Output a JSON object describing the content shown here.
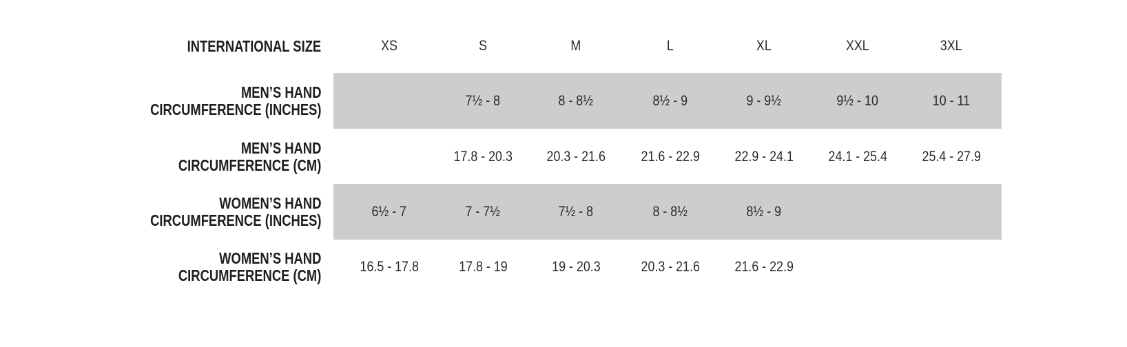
{
  "header": {
    "label": "INTERNATIONAL SIZE",
    "sizes": [
      "XS",
      "S",
      "M",
      "L",
      "XL",
      "XXL",
      "3XL"
    ]
  },
  "rows": [
    {
      "label_line1": "MEN’S HAND",
      "label_line2": "CIRCUMFERENCE (INCHES)",
      "shaded": true,
      "values": [
        "",
        "7½ - 8",
        "8 - 8½",
        "8½ - 9",
        "9 - 9½",
        "9½ - 10",
        "10 - 11"
      ]
    },
    {
      "label_line1": "MEN’S HAND",
      "label_line2": "CIRCUMFERENCE (CM)",
      "shaded": false,
      "values": [
        "",
        "17.8 - 20.3",
        "20.3 - 21.6",
        "21.6 - 22.9",
        "22.9 - 24.1",
        "24.1 - 25.4",
        "25.4 - 27.9"
      ]
    },
    {
      "label_line1": "WOMEN’S HAND",
      "label_line2": "CIRCUMFERENCE (INCHES)",
      "shaded": true,
      "values": [
        "6½ - 7",
        "7 - 7½",
        "7½ - 8",
        "8 - 8½",
        "8½ - 9",
        "",
        ""
      ]
    },
    {
      "label_line1": "WOMEN’S HAND",
      "label_line2": "CIRCUMFERENCE (CM)",
      "shaded": false,
      "values": [
        "16.5 - 17.8",
        "17.8 - 19",
        "19 - 20.3",
        "20.3 - 21.6",
        "21.6 - 22.9",
        "",
        ""
      ]
    }
  ],
  "colors": {
    "band": "#cccdce",
    "text": "#222222"
  }
}
